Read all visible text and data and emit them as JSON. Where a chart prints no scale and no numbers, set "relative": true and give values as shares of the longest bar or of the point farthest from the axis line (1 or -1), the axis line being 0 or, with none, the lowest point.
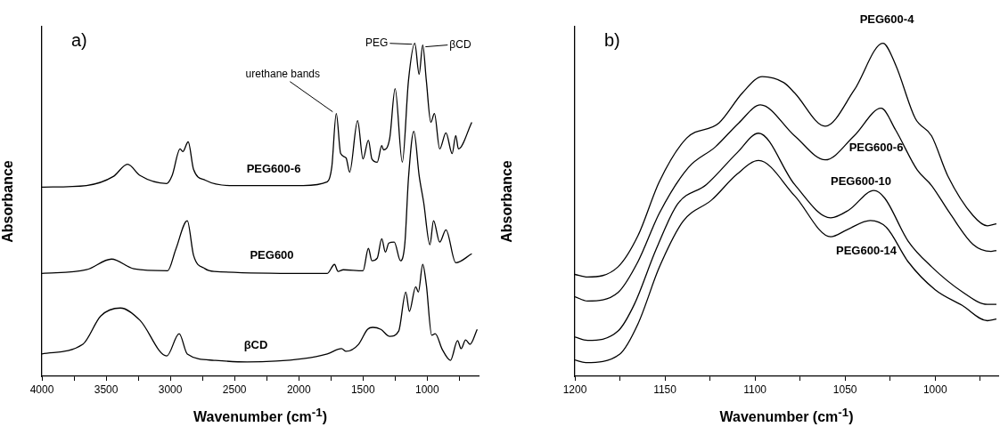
{
  "chart_data": [
    {
      "type": "line",
      "relative": true,
      "xlabel": "Wavenumber (cm$^{-1}$)",
      "ylabel": "Absorbance",
      "xlim": [
        4000,
        600
      ],
      "xticks": [
        4000,
        {
          "value": 3750,
          "label": null
        },
        3500,
        {
          "value": 3250,
          "label": null
        },
        3000,
        {
          "value": 2750,
          "label": null
        },
        2500,
        {
          "value": 2250,
          "label": null
        },
        2000,
        {
          "value": 1750,
          "label": null
        },
        1500,
        {
          "value": 1250,
          "label": null
        },
        1000,
        {
          "value": 750,
          "label": null
        }
      ],
      "annotations": [
        "a)",
        {
          "text": "urethane bands",
          "x": 1708,
          "y": 0.789
        },
        {
          "text": "PEG",
          "x": 1097,
          "y": 1.0
        },
        {
          "text": "βCD",
          "x": 1035,
          "y": 0.995
        }
      ],
      "series": [
        {
          "name": "PEG600-6",
          "color": "#000000",
          "x": [
            4000,
            3653,
            3444,
            3333,
            3236,
            3028,
            2986,
            2924,
            2903,
            2861,
            2819,
            2729,
            2542,
            1965,
            1778,
            1743,
            1708,
            1674,
            1632,
            1604,
            1542,
            1500,
            1458,
            1431,
            1389,
            1354,
            1340,
            1292,
            1250,
            1194,
            1146,
            1097,
            1063,
            1035,
            1007,
            972,
            944,
            903,
            854,
            806,
            778,
            757,
            653
          ],
          "values": [
            0.568,
            0.573,
            0.6,
            0.637,
            0.603,
            0.579,
            0.603,
            0.683,
            0.675,
            0.704,
            0.621,
            0.589,
            0.573,
            0.573,
            0.584,
            0.629,
            0.789,
            0.669,
            0.656,
            0.613,
            0.768,
            0.653,
            0.709,
            0.653,
            0.643,
            0.693,
            0.68,
            0.715,
            0.864,
            0.643,
            0.888,
            1.0,
            0.907,
            0.995,
            0.888,
            0.763,
            0.789,
            0.683,
            0.731,
            0.669,
            0.723,
            0.683,
            0.763
          ]
        },
        {
          "name": "PEG600",
          "color": "#000000",
          "x": [
            4000,
            3653,
            3458,
            3285,
            3021,
            2958,
            2868,
            2819,
            2729,
            2660,
            1965,
            1778,
            1722,
            1694,
            1653,
            1500,
            1458,
            1431,
            1389,
            1354,
            1326,
            1299,
            1257,
            1208,
            1174,
            1146,
            1104,
            1063,
            1028,
            979,
            951,
            903,
            854,
            778,
            653
          ],
          "values": [
            0.309,
            0.32,
            0.352,
            0.323,
            0.317,
            0.381,
            0.467,
            0.363,
            0.323,
            0.315,
            0.309,
            0.309,
            0.336,
            0.315,
            0.32,
            0.317,
            0.384,
            0.347,
            0.355,
            0.413,
            0.373,
            0.4,
            0.403,
            0.347,
            0.4,
            0.595,
            0.736,
            0.603,
            0.523,
            0.395,
            0.467,
            0.403,
            0.44,
            0.341,
            0.368
          ]
        },
        {
          "name": "βCD",
          "color": "#000000",
          "x": [
            4000,
            3681,
            3542,
            3389,
            3236,
            3028,
            2931,
            2868,
            2660,
            2403,
            1965,
            1778,
            1667,
            1632,
            1535,
            1465,
            1424,
            1361,
            1292,
            1222,
            1167,
            1139,
            1090,
            1069,
            1035,
            1007,
            965,
            938,
            882,
            819,
            764,
            736,
            701,
            667,
            611
          ],
          "values": [
            0.067,
            0.096,
            0.181,
            0.205,
            0.168,
            0.061,
            0.128,
            0.067,
            0.048,
            0.043,
            0.053,
            0.067,
            0.083,
            0.075,
            0.096,
            0.141,
            0.147,
            0.141,
            0.12,
            0.136,
            0.253,
            0.195,
            0.269,
            0.253,
            0.336,
            0.275,
            0.123,
            0.128,
            0.08,
            0.048,
            0.107,
            0.083,
            0.109,
            0.096,
            0.141
          ]
        }
      ]
    },
    {
      "type": "line",
      "relative": true,
      "xlabel": "Wavenumber (cm$^{-1}$)",
      "ylabel": "Absorbance",
      "xlim": [
        1200,
        965
      ],
      "xticks": [
        1200,
        {
          "value": 1175,
          "label": null
        },
        1150,
        {
          "value": 1125,
          "label": null
        },
        1100,
        {
          "value": 1075,
          "label": null
        },
        1050,
        {
          "value": 1025,
          "label": null
        },
        1000,
        {
          "value": 975,
          "label": null
        }
      ],
      "annotations": [
        "b)"
      ],
      "series": [
        {
          "name": "PEG600-4",
          "color": "#000000",
          "x": [
            1200,
            1193,
            1176,
            1165,
            1153,
            1138,
            1120,
            1107,
            1096,
            1084,
            1078,
            1061,
            1045,
            1029,
            1022,
            1011,
            1002,
            993,
            979,
            971,
            966
          ],
          "values": [
            0.306,
            0.298,
            0.329,
            0.422,
            0.586,
            0.715,
            0.761,
            0.851,
            0.9,
            0.882,
            0.851,
            0.751,
            0.859,
            1.0,
            0.936,
            0.774,
            0.722,
            0.602,
            0.483,
            0.452,
            0.458
          ]
        },
        {
          "name": "PEG600-6",
          "color": "#000000",
          "x": [
            1200,
            1193,
            1176,
            1165,
            1153,
            1137,
            1122,
            1109,
            1097,
            1078,
            1061,
            1045,
            1030,
            1022,
            1010,
            1002,
            992,
            979,
            969,
            966
          ],
          "values": [
            0.239,
            0.226,
            0.252,
            0.344,
            0.491,
            0.627,
            0.689,
            0.761,
            0.815,
            0.722,
            0.65,
            0.722,
            0.805,
            0.74,
            0.62,
            0.573,
            0.491,
            0.396,
            0.375,
            0.378
          ]
        },
        {
          "name": "PEG600-10",
          "color": "#000000",
          "x": [
            1200,
            1193,
            1176,
            1167,
            1155,
            1143,
            1127,
            1110,
            1098,
            1078,
            1058,
            1048,
            1034,
            1028,
            1015,
            1002,
            985,
            971,
            966
          ],
          "values": [
            0.118,
            0.108,
            0.136,
            0.216,
            0.38,
            0.517,
            0.576,
            0.671,
            0.73,
            0.576,
            0.476,
            0.499,
            0.558,
            0.535,
            0.406,
            0.329,
            0.254,
            0.216,
            0.216
          ]
        },
        {
          "name": "PEG600-14",
          "color": "#000000",
          "x": [
            1200,
            1194,
            1175,
            1165,
            1153,
            1140,
            1124,
            1110,
            1098,
            1078,
            1058,
            1049,
            1036,
            1027,
            1015,
            1000,
            985,
            971,
            966
          ],
          "values": [
            0.049,
            0.041,
            0.067,
            0.157,
            0.329,
            0.465,
            0.53,
            0.607,
            0.648,
            0.542,
            0.419,
            0.44,
            0.468,
            0.447,
            0.344,
            0.26,
            0.213,
            0.167,
            0.172
          ]
        }
      ]
    }
  ]
}
